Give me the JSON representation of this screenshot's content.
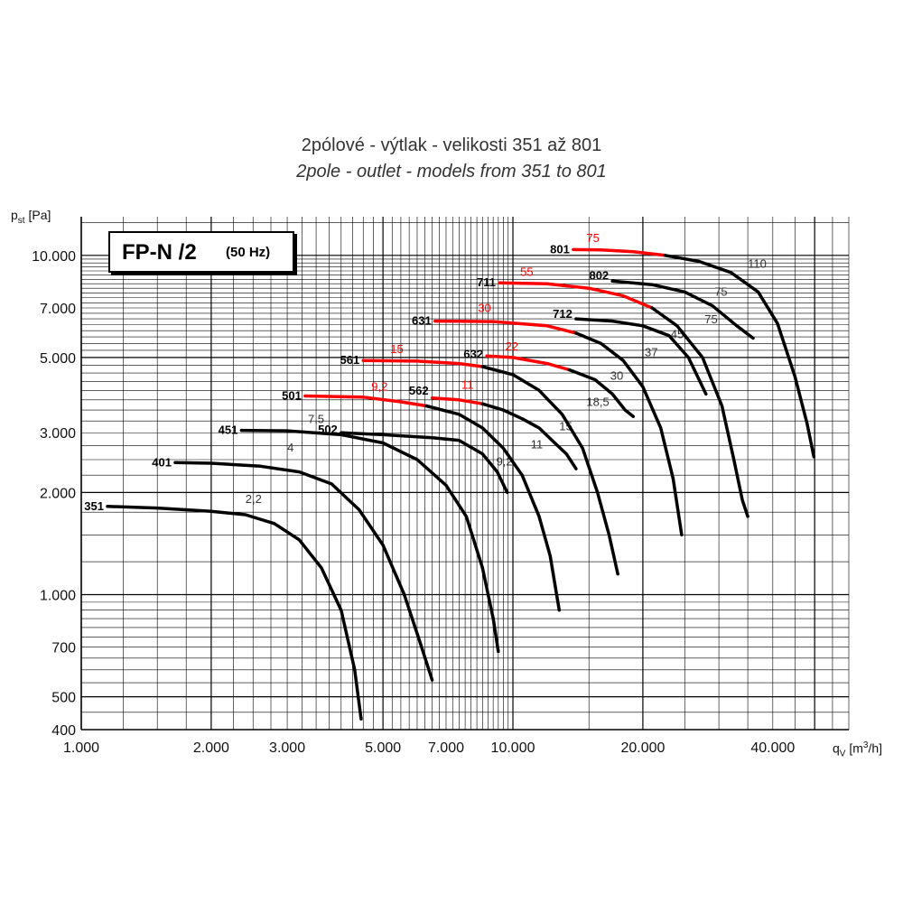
{
  "header": {
    "title_cz": "2pólové - výtlak - velikosti 351 až 801",
    "title_en": "2pole - outlet - models from 351 to 801"
  },
  "labels": {
    "y_axis_main": "p",
    "y_axis_sub": "st",
    "y_axis_unit": " [Pa]",
    "x_axis_main": "q",
    "x_axis_sub": "V",
    "x_axis_unit_a": " [m",
    "x_axis_unit_sup": "3",
    "x_axis_unit_b": "/h]",
    "box_main": "FP-N /2",
    "box_sub": "(50 Hz)"
  },
  "colors": {
    "black_curve": "#000000",
    "red_curve": "#ff0000",
    "grid": "#000000",
    "text": "#333333"
  },
  "chart_data": {
    "type": "line",
    "title": "2pólové - výtlak - velikosti 351 až 801",
    "subtitle": "2pole - outlet - models from 351 to 801",
    "xlabel": "qV [m3/h]",
    "ylabel": "pst [Pa]",
    "x_scale": "log",
    "y_scale": "log",
    "xlim": [
      1000,
      60000
    ],
    "ylim": [
      400,
      13000
    ],
    "grid": true,
    "x_ticks": [
      {
        "value": 1000,
        "label": "1.000"
      },
      {
        "value": 2000,
        "label": "2.000"
      },
      {
        "value": 3000,
        "label": "3.000"
      },
      {
        "value": 5000,
        "label": "5.000"
      },
      {
        "value": 7000,
        "label": "7.000"
      },
      {
        "value": 10000,
        "label": "10.000"
      },
      {
        "value": 20000,
        "label": "20.000"
      },
      {
        "value": 40000,
        "label": "40.000"
      }
    ],
    "y_ticks": [
      {
        "value": 400,
        "label": "400"
      },
      {
        "value": 500,
        "label": "500"
      },
      {
        "value": 700,
        "label": "700"
      },
      {
        "value": 1000,
        "label": "1.000"
      },
      {
        "value": 2000,
        "label": "2.000"
      },
      {
        "value": 3000,
        "label": "3.000"
      },
      {
        "value": 5000,
        "label": "5.000"
      },
      {
        "value": 7000,
        "label": "7.000"
      },
      {
        "value": 10000,
        "label": "10.000"
      }
    ],
    "series": [
      {
        "name": "351",
        "color": "#000000",
        "points": [
          [
            1150,
            1820
          ],
          [
            1500,
            1800
          ],
          [
            2000,
            1760
          ],
          [
            2400,
            1720
          ],
          [
            2800,
            1620
          ],
          [
            3200,
            1450
          ],
          [
            3600,
            1200
          ],
          [
            4000,
            900
          ],
          [
            4300,
            600
          ],
          [
            4450,
            430
          ]
        ],
        "labels": [
          {
            "text": "2,2",
            "x": 2400,
            "y": 1860,
            "color": "#333333"
          }
        ]
      },
      {
        "name": "401",
        "color": "#000000",
        "points": [
          [
            1650,
            2450
          ],
          [
            2000,
            2440
          ],
          [
            2600,
            2390
          ],
          [
            3200,
            2300
          ],
          [
            3800,
            2120
          ],
          [
            4400,
            1780
          ],
          [
            5000,
            1400
          ],
          [
            5600,
            1000
          ],
          [
            6100,
            720
          ],
          [
            6500,
            560
          ]
        ],
        "labels": [
          {
            "text": "4",
            "x": 3000,
            "y": 2640,
            "color": "#333333"
          }
        ]
      },
      {
        "name": "451",
        "color": "#000000",
        "points": [
          [
            2350,
            3050
          ],
          [
            3000,
            3040
          ],
          [
            4000,
            2960
          ],
          [
            5000,
            2800
          ],
          [
            6000,
            2500
          ],
          [
            7000,
            2100
          ],
          [
            7800,
            1700
          ],
          [
            8500,
            1200
          ],
          [
            9000,
            850
          ],
          [
            9250,
            680
          ]
        ],
        "labels": [
          {
            "text": "7,5",
            "x": 3350,
            "y": 3200,
            "color": "#333333"
          }
        ]
      },
      {
        "name": "502",
        "color": "#000000",
        "points": [
          [
            4000,
            3000
          ],
          [
            5000,
            2960
          ],
          [
            6500,
            2900
          ],
          [
            7500,
            2850
          ],
          [
            8500,
            2600
          ],
          [
            9200,
            2300
          ],
          [
            9700,
            2000
          ]
        ],
        "labels": [
          {
            "text": "9,2",
            "x": 9150,
            "y": 2400,
            "color": "#333333"
          }
        ]
      },
      {
        "name": "501",
        "color": "#ff0000",
        "points": [
          [
            3300,
            3850
          ],
          [
            4500,
            3820
          ],
          [
            5500,
            3700
          ],
          [
            6300,
            3600
          ]
        ],
        "labels": [
          {
            "text": "9,2",
            "x": 4700,
            "y": 4000,
            "color": "#ff0000"
          }
        ]
      },
      {
        "name": "501 (ext.)",
        "color": "#000000",
        "points": [
          [
            6300,
            3600
          ],
          [
            7500,
            3400
          ],
          [
            8500,
            3100
          ],
          [
            9500,
            2700
          ],
          [
            10500,
            2250
          ],
          [
            11500,
            1700
          ],
          [
            12200,
            1300
          ],
          [
            12800,
            900
          ]
        ],
        "labels": [
          {
            "text": "11",
            "x": 11000,
            "y": 2700,
            "color": "#333333"
          }
        ]
      },
      {
        "name": "562",
        "color": "#ff0000",
        "points": [
          [
            6500,
            3800
          ],
          [
            7500,
            3750
          ],
          [
            8500,
            3650
          ]
        ],
        "labels": [
          {
            "text": "11",
            "x": 7600,
            "y": 4050,
            "color": "#ff0000"
          }
        ]
      },
      {
        "name": "562 (ext.)",
        "color": "#000000",
        "points": [
          [
            8500,
            3650
          ],
          [
            9500,
            3500
          ],
          [
            10500,
            3300
          ],
          [
            11500,
            3100
          ],
          [
            12500,
            2800
          ],
          [
            13300,
            2600
          ],
          [
            14000,
            2350
          ]
        ],
        "labels": [
          {
            "text": "15",
            "x": 12800,
            "y": 3050,
            "color": "#333333"
          }
        ]
      },
      {
        "name": "561",
        "color": "#ff0000",
        "points": [
          [
            4500,
            4900
          ],
          [
            6000,
            4880
          ],
          [
            7500,
            4800
          ],
          [
            8500,
            4700
          ]
        ],
        "labels": [
          {
            "text": "15",
            "x": 5200,
            "y": 5150,
            "color": "#ff0000"
          }
        ]
      },
      {
        "name": "561 (ext.)",
        "color": "#000000",
        "points": [
          [
            8500,
            4700
          ],
          [
            10000,
            4450
          ],
          [
            11500,
            4000
          ],
          [
            13000,
            3400
          ],
          [
            14500,
            2700
          ],
          [
            15700,
            2000
          ],
          [
            16700,
            1500
          ],
          [
            17500,
            1150
          ]
        ],
        "labels": [
          {
            "text": "18,5",
            "x": 14800,
            "y": 3600,
            "color": "#333333"
          }
        ]
      },
      {
        "name": "632",
        "color": "#ff0000",
        "points": [
          [
            8700,
            5050
          ],
          [
            10000,
            5000
          ],
          [
            12000,
            4800
          ],
          [
            13500,
            4600
          ]
        ],
        "labels": [
          {
            "text": "22",
            "x": 9600,
            "y": 5250,
            "color": "#ff0000"
          }
        ]
      },
      {
        "name": "632 (ext.)",
        "color": "#000000",
        "points": [
          [
            13500,
            4600
          ],
          [
            15500,
            4300
          ],
          [
            17000,
            3900
          ],
          [
            18200,
            3500
          ],
          [
            19000,
            3350
          ]
        ],
        "labels": [
          {
            "text": "30",
            "x": 16800,
            "y": 4300,
            "color": "#333333"
          }
        ]
      },
      {
        "name": "631",
        "color": "#ff0000",
        "points": [
          [
            6600,
            6400
          ],
          [
            9000,
            6380
          ],
          [
            12000,
            6200
          ],
          [
            14000,
            5900
          ]
        ],
        "labels": [
          {
            "text": "30",
            "x": 8300,
            "y": 6800,
            "color": "#ff0000"
          }
        ]
      },
      {
        "name": "631 (ext.)",
        "color": "#000000",
        "points": [
          [
            14000,
            5900
          ],
          [
            16000,
            5500
          ],
          [
            18000,
            4900
          ],
          [
            20000,
            4100
          ],
          [
            22000,
            3100
          ],
          [
            23500,
            2200
          ],
          [
            24600,
            1500
          ]
        ],
        "labels": [
          {
            "text": "37",
            "x": 20200,
            "y": 5050,
            "color": "#333333"
          }
        ]
      },
      {
        "name": "712",
        "color": "#000000",
        "points": [
          [
            14000,
            6500
          ],
          [
            17000,
            6400
          ],
          [
            20000,
            6200
          ],
          [
            23000,
            5800
          ],
          [
            25500,
            5000
          ],
          [
            27000,
            4300
          ],
          [
            28000,
            3900
          ]
        ],
        "labels": [
          {
            "text": "45",
            "x": 23200,
            "y": 5700,
            "color": "#333333"
          }
        ]
      },
      {
        "name": "711",
        "color": "#ff0000",
        "points": [
          [
            9300,
            8300
          ],
          [
            12000,
            8250
          ],
          [
            15000,
            8000
          ],
          [
            18000,
            7600
          ],
          [
            21000,
            7000
          ]
        ],
        "labels": [
          {
            "text": "55",
            "x": 10400,
            "y": 8700,
            "color": "#ff0000"
          }
        ]
      },
      {
        "name": "711 (ext.)",
        "color": "#000000",
        "points": [
          [
            21000,
            7000
          ],
          [
            24000,
            6200
          ],
          [
            27500,
            5000
          ],
          [
            30500,
            3600
          ],
          [
            32500,
            2500
          ],
          [
            34000,
            1900
          ],
          [
            35000,
            1700
          ]
        ],
        "labels": [
          {
            "text": "75",
            "x": 27800,
            "y": 6300,
            "color": "#333333"
          }
        ]
      },
      {
        "name": "802",
        "color": "#000000",
        "points": [
          [
            17000,
            8400
          ],
          [
            21000,
            8200
          ],
          [
            25000,
            7800
          ],
          [
            29000,
            7100
          ],
          [
            33000,
            6200
          ],
          [
            36000,
            5700
          ]
        ],
        "labels": [
          {
            "text": "75",
            "x": 29300,
            "y": 7600,
            "color": "#333333"
          }
        ]
      },
      {
        "name": "801",
        "color": "#ff0000",
        "points": [
          [
            13800,
            10400
          ],
          [
            16000,
            10380
          ],
          [
            19000,
            10250
          ],
          [
            22500,
            10000
          ]
        ],
        "labels": [
          {
            "text": "75",
            "x": 14800,
            "y": 10950,
            "color": "#ff0000"
          }
        ]
      },
      {
        "name": "801 (ext.)",
        "color": "#000000",
        "points": [
          [
            22500,
            10000
          ],
          [
            27000,
            9600
          ],
          [
            32000,
            8900
          ],
          [
            37000,
            7800
          ],
          [
            41000,
            6300
          ],
          [
            45000,
            4400
          ],
          [
            48000,
            3200
          ],
          [
            49800,
            2550
          ]
        ],
        "labels": [
          {
            "text": "110",
            "x": 35000,
            "y": 9200,
            "color": "#333333"
          }
        ]
      }
    ],
    "model_labels": [
      {
        "text": "351",
        "x": 1150,
        "y": 1820
      },
      {
        "text": "401",
        "x": 1650,
        "y": 2450
      },
      {
        "text": "451",
        "x": 2350,
        "y": 3050
      },
      {
        "text": "502",
        "x": 4000,
        "y": 3060
      },
      {
        "text": "501",
        "x": 3300,
        "y": 3850
      },
      {
        "text": "562",
        "x": 6500,
        "y": 3980
      },
      {
        "text": "561",
        "x": 4500,
        "y": 4900
      },
      {
        "text": "632",
        "x": 8700,
        "y": 5100
      },
      {
        "text": "631",
        "x": 6600,
        "y": 6400
      },
      {
        "text": "712",
        "x": 14000,
        "y": 6700
      },
      {
        "text": "711",
        "x": 9300,
        "y": 8300
      },
      {
        "text": "802",
        "x": 17000,
        "y": 8700
      },
      {
        "text": "801",
        "x": 13800,
        "y": 10400
      }
    ]
  }
}
